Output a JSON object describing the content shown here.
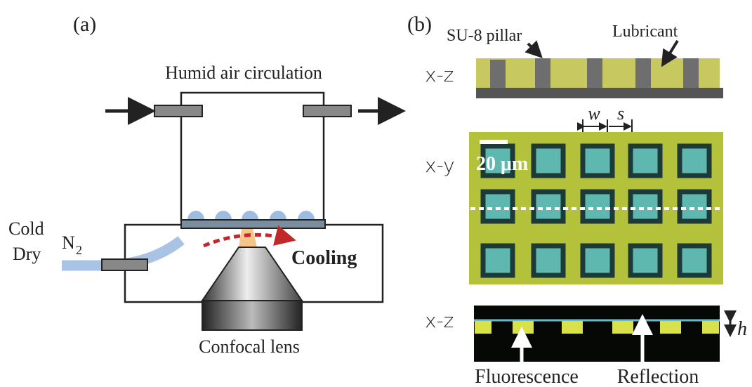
{
  "panel_a": {
    "label": "(a)",
    "chamber_label": "Humid air circulation",
    "gas": {
      "line1": "Cold",
      "line2": "Dry",
      "symbol": "N",
      "subscript": "2"
    },
    "cooling_label": "Cooling",
    "lens_label": "Confocal lens"
  },
  "panel_b": {
    "label": "(b)",
    "pillar_label": "SU-8 pillar",
    "lubricant_label": "Lubricant",
    "top_view_label": "x-z",
    "middle_view_label": "x-y",
    "bottom_view_label": "x-z",
    "width_label": "w",
    "spacing_label": "s",
    "scale_bar": "20 μm",
    "height_label": "h",
    "fluorescence_label": "Fluorescence",
    "reflection_label": "Reflection"
  }
}
